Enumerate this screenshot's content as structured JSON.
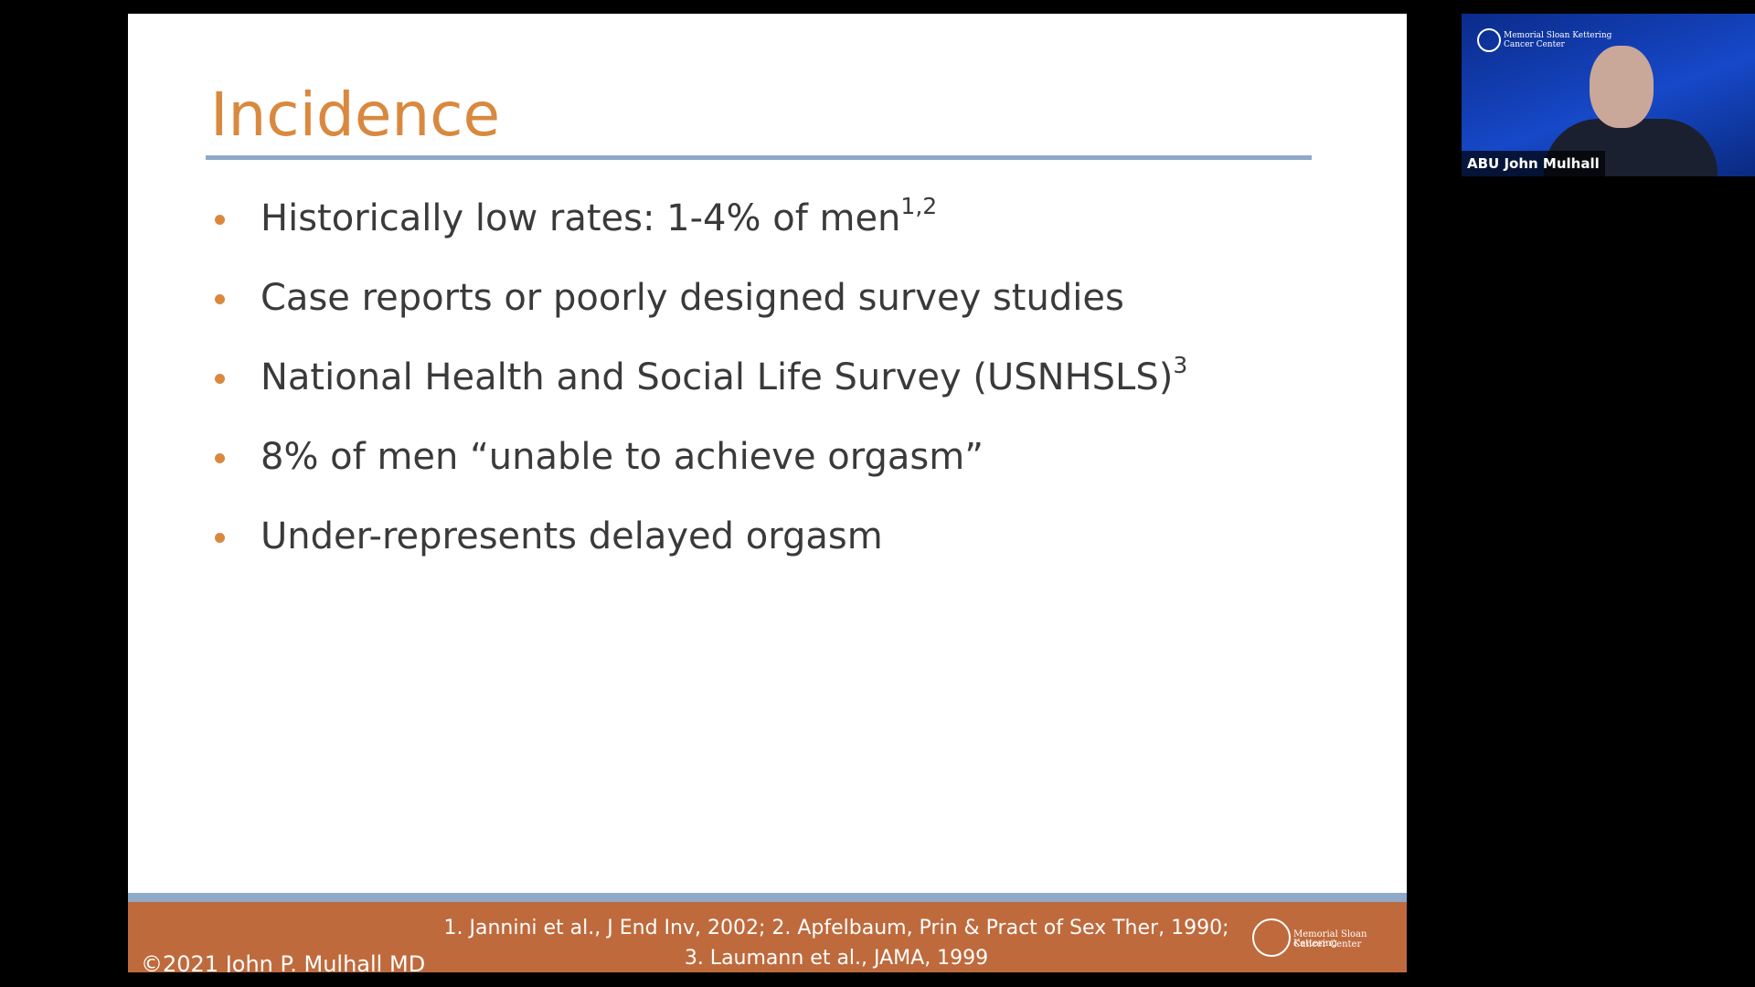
{
  "slide": {
    "title": "Incidence",
    "bullets": [
      {
        "text": "Historically low rates: 1-4% of men",
        "sup": "1,2"
      },
      {
        "text": "Case reports or poorly designed survey studies"
      },
      {
        "text": "National Health and Social Life Survey (USNHSLS)",
        "sup": "3"
      },
      {
        "text": "8% of men “unable to achieve orgasm”"
      },
      {
        "text": "Under-represents delayed orgasm"
      }
    ],
    "footer": {
      "copyright": "©2021 John P. Mulhall MD",
      "references": [
        "1. Jannini et al., J End Inv, 2002; 2. Apfelbaum, Prin & Pract of Sex Ther, 1990;",
        "3. Laumann et al., JAMA, 1999"
      ],
      "logo": [
        "Memorial Sloan Kettering",
        "Cancer Center"
      ]
    }
  },
  "video": {
    "name": "ABU John Mulhall",
    "logo": [
      "Memorial Sloan Kettering",
      "Cancer Center"
    ]
  }
}
